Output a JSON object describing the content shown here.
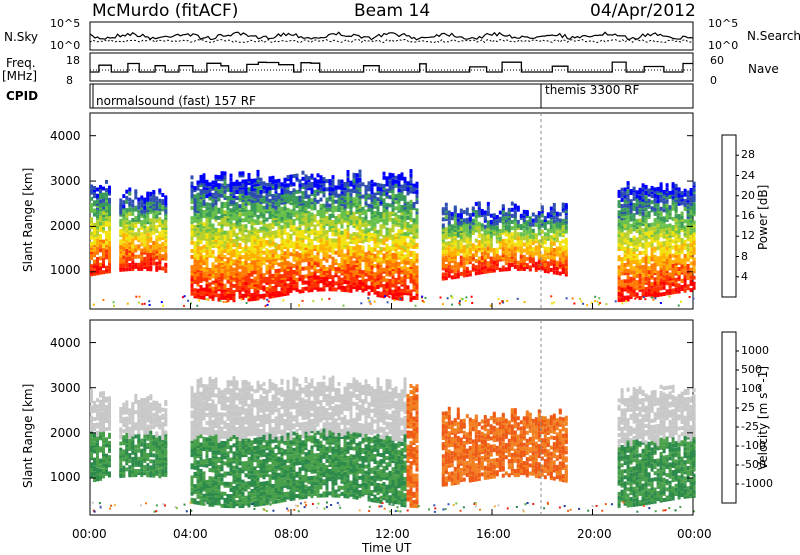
{
  "header": {
    "station": "McMurdo (fitACF)",
    "beam": "Beam 14",
    "date": "04/Apr/2012"
  },
  "colors": {
    "power_scale": [
      "#0000ff",
      "#2f4fb0",
      "#3a9a5a",
      "#66c04a",
      "#b6cf2a",
      "#f2e20f",
      "#ffb000",
      "#ff7a00",
      "#ff3300",
      "#ff0000"
    ],
    "velocity_scale": [
      "#1f3f9e",
      "#2f55b8",
      "#2c8a4a",
      "#49a04a",
      "#7cc13a",
      "#c8c8c8",
      "#f2b040",
      "#f28020",
      "#ee5a15",
      "#ee2010"
    ]
  },
  "panels": {
    "nsky": {
      "label": "N.Sky",
      "tick_hi": "10^5",
      "tick_lo": "10^0",
      "right_label": "N.Search",
      "right_tick_hi": "10^5",
      "right_tick_lo": "10^0"
    },
    "freq": {
      "label_line1": "Freq.",
      "label_line2": "[MHz]",
      "tick_hi": "18",
      "tick_lo": "8",
      "right_label": "Nave",
      "right_tick_hi": "60",
      "right_tick_lo": "0"
    },
    "cpid": {
      "label": "CPID",
      "mode1": "normalsound (fast) 157 RF",
      "mode2": "themis 3300 RF"
    }
  },
  "chart_data": [
    {
      "type": "heatmap",
      "title": "Power",
      "ylabel": "Slant Range [km]",
      "xlabel": "",
      "ylim": [
        180,
        4500
      ],
      "y_ticks": [
        "1000",
        "2000",
        "3000",
        "4000"
      ],
      "colorbar_label": "Power [dB]",
      "colorbar_ticks": [
        "28",
        "24",
        "20",
        "16",
        "12",
        "8",
        "4"
      ],
      "regions": [
        {
          "from": "00:00",
          "to": "00:50",
          "range_km": [
            900,
            3000
          ]
        },
        {
          "from": "01:10",
          "to": "03:00",
          "range_km": [
            900,
            2800
          ]
        },
        {
          "from": "04:00",
          "to": "13:00",
          "range_km": [
            450,
            3200
          ]
        },
        {
          "from": "14:00",
          "to": "19:00",
          "range_km": [
            900,
            2500
          ]
        },
        {
          "from": "21:00",
          "to": "24:00",
          "range_km": [
            450,
            3000
          ]
        }
      ]
    },
    {
      "type": "heatmap",
      "title": "Velocity",
      "ylabel": "Slant Range [km]",
      "xlabel": "Time UT",
      "ylim": [
        180,
        4500
      ],
      "y_ticks": [
        "1000",
        "2000",
        "3000",
        "4000"
      ],
      "colorbar_label": "Velocity [m s^-1]",
      "colorbar_ticks": [
        "1000",
        "500",
        "100",
        "25",
        "-25",
        "-100",
        "-500",
        "-1000"
      ],
      "x_ticks": [
        "00:00",
        "04:00",
        "08:00",
        "12:00",
        "16:00",
        "20:00",
        "00:00"
      ]
    }
  ]
}
